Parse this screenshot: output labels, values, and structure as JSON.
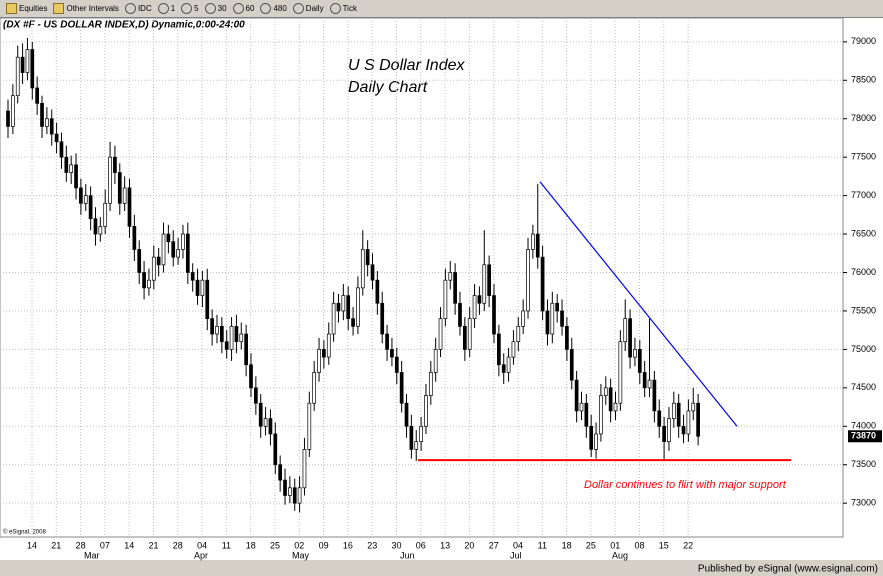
{
  "toolbar": {
    "items": [
      "Equities",
      "Other Intervals",
      "IDC",
      "1",
      "5",
      "30",
      "60",
      "480",
      "Daily",
      "Tick"
    ]
  },
  "chart_data": {
    "type": "candlestick",
    "title": "(DX #F - US DOLLAR INDEX,D) Dynamic,0:00-24:00",
    "annotation_title": [
      "U S Dollar Index",
      "Daily Chart"
    ],
    "annotation": "Dollar continues to flirt with major support",
    "copyright": "© eSignal, 2008",
    "footer": "Published by eSignal (www.esignal.com)",
    "xtick_labels": [
      "14",
      "21",
      "28",
      "07",
      "14",
      "21",
      "28",
      "04",
      "11",
      "18",
      "25",
      "02",
      "09",
      "16",
      "23",
      "30",
      "06",
      "13",
      "20",
      "27",
      "04",
      "11",
      "18",
      "25",
      "01",
      "08",
      "15",
      "22"
    ],
    "months": [
      "Mar",
      "Apr",
      "May",
      "Jun",
      "Jul",
      "Aug"
    ],
    "ylim": [
      72560,
      79180
    ],
    "yticks": [
      73000,
      73500,
      74000,
      74500,
      75000,
      75500,
      76000,
      76500,
      77000,
      77500,
      78000,
      78500,
      79000
    ],
    "grid": true,
    "support_level": 73560,
    "support_color": "#ff0000",
    "trendline": [
      77180,
      74000
    ],
    "trendline_color": "#0000ff",
    "candles": [
      [
        78100,
        78250,
        77750,
        77900
      ],
      [
        77900,
        78450,
        77800,
        78300
      ],
      [
        78300,
        78950,
        78200,
        78800
      ],
      [
        78800,
        78980,
        78450,
        78600
      ],
      [
        78600,
        79050,
        78500,
        78900
      ],
      [
        78900,
        79000,
        78250,
        78400
      ],
      [
        78400,
        78550,
        78050,
        78200
      ],
      [
        78200,
        78300,
        77750,
        77900
      ],
      [
        77900,
        78150,
        77800,
        78000
      ],
      [
        78000,
        78120,
        77650,
        77800
      ],
      [
        77800,
        77950,
        77550,
        77700
      ],
      [
        77700,
        77820,
        77350,
        77500
      ],
      [
        77500,
        77650,
        77180,
        77300
      ],
      [
        77300,
        77520,
        77150,
        77400
      ],
      [
        77400,
        77550,
        76950,
        77100
      ],
      [
        77100,
        77220,
        76750,
        76900
      ],
      [
        76900,
        77150,
        76800,
        77000
      ],
      [
        77000,
        77120,
        76550,
        76700
      ],
      [
        76700,
        76850,
        76350,
        76500
      ],
      [
        76500,
        76720,
        76400,
        76600
      ],
      [
        76600,
        77080,
        76500,
        76900
      ],
      [
        76900,
        77700,
        76800,
        77500
      ],
      [
        77500,
        77650,
        77150,
        77300
      ],
      [
        77300,
        77420,
        76750,
        76900
      ],
      [
        76900,
        77250,
        76800,
        77100
      ],
      [
        77100,
        77220,
        76450,
        76600
      ],
      [
        76600,
        76750,
        76150,
        76300
      ],
      [
        76300,
        76420,
        75850,
        76000
      ],
      [
        76000,
        76150,
        75650,
        75800
      ],
      [
        75800,
        76050,
        75700,
        75900
      ],
      [
        75900,
        76350,
        75780,
        76200
      ],
      [
        76200,
        76320,
        75950,
        76100
      ],
      [
        76100,
        76650,
        76000,
        76500
      ],
      [
        76500,
        76620,
        76250,
        76400
      ],
      [
        76400,
        76550,
        76080,
        76200
      ],
      [
        76200,
        76450,
        76100,
        76300
      ],
      [
        76300,
        76620,
        76180,
        76500
      ],
      [
        76500,
        76650,
        75850,
        76000
      ],
      [
        76000,
        76120,
        75750,
        75900
      ],
      [
        75900,
        76050,
        75580,
        75700
      ],
      [
        75700,
        76020,
        75550,
        75900
      ],
      [
        75900,
        76050,
        75250,
        75400
      ],
      [
        75400,
        75520,
        75050,
        75200
      ],
      [
        75200,
        75450,
        75080,
        75300
      ],
      [
        75300,
        75420,
        74950,
        75100
      ],
      [
        75100,
        75250,
        74880,
        75000
      ],
      [
        75000,
        75420,
        74850,
        75300
      ],
      [
        75300,
        75450,
        74950,
        75100
      ],
      [
        75100,
        75350,
        75000,
        75200
      ],
      [
        75200,
        75320,
        74650,
        74800
      ],
      [
        74800,
        74950,
        74380,
        74500
      ],
      [
        74500,
        74650,
        74150,
        74300
      ],
      [
        74300,
        74420,
        73850,
        74000
      ],
      [
        74000,
        74250,
        73880,
        74100
      ],
      [
        74100,
        74220,
        73750,
        73900
      ],
      [
        73900,
        74050,
        73380,
        73500
      ],
      [
        73500,
        73620,
        73150,
        73300
      ],
      [
        73300,
        73450,
        72980,
        73100
      ],
      [
        73100,
        73350,
        73000,
        73200
      ],
      [
        73200,
        73320,
        72900,
        73000
      ],
      [
        73000,
        73350,
        72880,
        73200
      ],
      [
        73200,
        73850,
        73100,
        73700
      ],
      [
        73700,
        74450,
        73600,
        74300
      ],
      [
        74300,
        74850,
        74200,
        74700
      ],
      [
        74700,
        75150,
        74580,
        75000
      ],
      [
        75000,
        75120,
        74750,
        74900
      ],
      [
        74900,
        75350,
        74800,
        75200
      ],
      [
        75200,
        75750,
        75100,
        75600
      ],
      [
        75600,
        75720,
        75350,
        75500
      ],
      [
        75500,
        75850,
        75380,
        75700
      ],
      [
        75700,
        75820,
        75250,
        75400
      ],
      [
        75400,
        75550,
        75180,
        75300
      ],
      [
        75300,
        75950,
        75200,
        75800
      ],
      [
        75800,
        76550,
        75700,
        76300
      ],
      [
        76300,
        76420,
        75950,
        76100
      ],
      [
        76100,
        76250,
        75780,
        75900
      ],
      [
        75900,
        76020,
        75450,
        75600
      ],
      [
        75600,
        75750,
        75080,
        75200
      ],
      [
        75200,
        75320,
        74850,
        75000
      ],
      [
        75000,
        75150,
        74780,
        74900
      ],
      [
        74900,
        75020,
        74550,
        74700
      ],
      [
        74700,
        74850,
        74180,
        74300
      ],
      [
        74300,
        74420,
        73850,
        74000
      ],
      [
        74000,
        74150,
        73580,
        73700
      ],
      [
        73700,
        73950,
        73550,
        73800
      ],
      [
        73800,
        74120,
        73680,
        74000
      ],
      [
        74000,
        74550,
        73900,
        74400
      ],
      [
        74400,
        74850,
        74280,
        74700
      ],
      [
        74700,
        75150,
        74580,
        75000
      ],
      [
        75000,
        75550,
        74900,
        75400
      ],
      [
        75400,
        76050,
        75300,
        75900
      ],
      [
        75900,
        76150,
        75780,
        76000
      ],
      [
        76000,
        76120,
        75450,
        75600
      ],
      [
        75600,
        75750,
        75180,
        75300
      ],
      [
        75300,
        75420,
        74850,
        75000
      ],
      [
        75000,
        75550,
        74900,
        75400
      ],
      [
        75400,
        75850,
        75280,
        75700
      ],
      [
        75700,
        75820,
        75450,
        75600
      ],
      [
        75600,
        76550,
        75500,
        76100
      ],
      [
        76100,
        76220,
        75550,
        75700
      ],
      [
        75700,
        75850,
        75080,
        75200
      ],
      [
        75200,
        75320,
        74650,
        74800
      ],
      [
        74800,
        74950,
        74550,
        74700
      ],
      [
        74700,
        75020,
        74580,
        74900
      ],
      [
        74900,
        75250,
        74800,
        75100
      ],
      [
        75100,
        75420,
        74980,
        75300
      ],
      [
        75300,
        75650,
        75200,
        75500
      ],
      [
        75500,
        76450,
        75400,
        76300
      ],
      [
        76300,
        76620,
        76180,
        76500
      ],
      [
        76500,
        77150,
        76050,
        76200
      ],
      [
        76200,
        76350,
        75380,
        75500
      ],
      [
        75500,
        75650,
        75050,
        75200
      ],
      [
        75200,
        75750,
        75080,
        75600
      ],
      [
        75600,
        75720,
        75350,
        75500
      ],
      [
        75500,
        75650,
        75180,
        75300
      ],
      [
        75300,
        75420,
        74850,
        75000
      ],
      [
        75000,
        75150,
        74480,
        74600
      ],
      [
        74600,
        74720,
        74050,
        74200
      ],
      [
        74200,
        74450,
        74080,
        74300
      ],
      [
        74300,
        74420,
        73850,
        74000
      ],
      [
        74000,
        74150,
        73600,
        73700
      ],
      [
        73700,
        74050,
        73580,
        73900
      ],
      [
        73900,
        74550,
        73800,
        74400
      ],
      [
        74400,
        74650,
        74280,
        74500
      ],
      [
        74500,
        74620,
        74050,
        74200
      ],
      [
        74200,
        74450,
        74080,
        74300
      ],
      [
        74300,
        75250,
        74200,
        75100
      ],
      [
        75100,
        75650,
        74980,
        75400
      ],
      [
        75400,
        75520,
        74750,
        74900
      ],
      [
        74900,
        75150,
        74780,
        75000
      ],
      [
        75000,
        75120,
        74550,
        74700
      ],
      [
        74700,
        74850,
        74380,
        74500
      ],
      [
        74500,
        75400,
        74380,
        74600
      ],
      [
        74600,
        74720,
        74050,
        74200
      ],
      [
        74200,
        74350,
        73850,
        74000
      ],
      [
        74000,
        74120,
        73560,
        73800
      ],
      [
        73800,
        74250,
        73680,
        74100
      ],
      [
        74100,
        74450,
        73980,
        74300
      ],
      [
        74300,
        74420,
        73850,
        74000
      ],
      [
        74000,
        74150,
        73780,
        73900
      ],
      [
        73900,
        74350,
        73800,
        74200
      ],
      [
        74200,
        74500,
        74080,
        74300
      ],
      [
        74300,
        74420,
        73750,
        73870
      ]
    ]
  }
}
